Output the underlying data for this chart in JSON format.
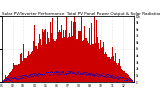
{
  "title": "Solar PV/Inverter Performance  Total PV Panel Power Output & Solar Radiation",
  "title_fontsize": 3.0,
  "bg_color": "#ffffff",
  "plot_bg_color": "#ffffff",
  "grid_color": "#cccccc",
  "bar_color": "#cc0000",
  "dot_color": "#0000cc",
  "n_points": 365,
  "ylim": [
    0,
    1
  ],
  "xlim": [
    0,
    365
  ],
  "right_ytick_labels": [
    "1k",
    "",
    "2k",
    "",
    "3k",
    "",
    "4k",
    "",
    "5k",
    "",
    "6k",
    "",
    "7k",
    "",
    "8k",
    "",
    "9k",
    "",
    "10k"
  ],
  "figsize": [
    1.6,
    1.0
  ],
  "dpi": 100
}
